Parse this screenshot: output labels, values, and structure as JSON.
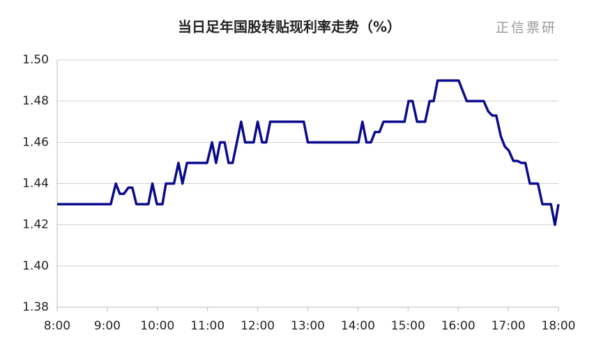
{
  "chart_data": {
    "type": "line",
    "title": "当日足年国股转贴现利率走势（%）",
    "watermark": "正信票研",
    "x": [
      8,
      9.07,
      9.17,
      9.25,
      9.33,
      9.42,
      9.5,
      9.58,
      9.82,
      9.9,
      9.99,
      10.1,
      10.17,
      10.33,
      10.42,
      10.5,
      10.59,
      10.99,
      11.09,
      11.17,
      11.25,
      11.34,
      11.42,
      11.5,
      11.67,
      11.75,
      11.92,
      12.0,
      12.09,
      12.17,
      12.25,
      12.92,
      13.0,
      14.01,
      14.09,
      14.17,
      14.26,
      14.34,
      14.43,
      14.51,
      14.93,
      15.01,
      15.09,
      15.18,
      15.34,
      15.43,
      15.51,
      15.59,
      16.01,
      16.17,
      16.51,
      16.6,
      16.68,
      16.76,
      16.85,
      16.93,
      17.01,
      17.1,
      17.18,
      17.26,
      17.34,
      17.43,
      17.59,
      17.68,
      17.85,
      17.93,
      18.0
    ],
    "series": [
      {
        "name": "利率",
        "color": "#0a0a8c",
        "values": [
          1.43,
          1.43,
          1.44,
          1.435,
          1.435,
          1.438,
          1.438,
          1.43,
          1.43,
          1.44,
          1.43,
          1.43,
          1.44,
          1.44,
          1.45,
          1.44,
          1.45,
          1.45,
          1.46,
          1.45,
          1.46,
          1.46,
          1.45,
          1.45,
          1.47,
          1.46,
          1.46,
          1.47,
          1.46,
          1.46,
          1.47,
          1.47,
          1.46,
          1.46,
          1.47,
          1.46,
          1.46,
          1.465,
          1.465,
          1.47,
          1.47,
          1.48,
          1.48,
          1.47,
          1.47,
          1.48,
          1.48,
          1.49,
          1.49,
          1.48,
          1.48,
          1.475,
          1.473,
          1.473,
          1.463,
          1.458,
          1.456,
          1.451,
          1.451,
          1.45,
          1.45,
          1.44,
          1.44,
          1.43,
          1.43,
          1.42,
          1.43
        ]
      }
    ],
    "xlim": [
      8,
      18
    ],
    "xticks": [
      {
        "value": 8,
        "label": "8:00"
      },
      {
        "value": 9,
        "label": "9:00"
      },
      {
        "value": 10,
        "label": "10:00"
      },
      {
        "value": 11,
        "label": "11:00"
      },
      {
        "value": 12,
        "label": "12:00"
      },
      {
        "value": 13,
        "label": "13:00"
      },
      {
        "value": 14,
        "label": "14:00"
      },
      {
        "value": 15,
        "label": "15:00"
      },
      {
        "value": 16,
        "label": "16:00"
      },
      {
        "value": 17,
        "label": "17:00"
      },
      {
        "value": 18,
        "label": "18:00"
      }
    ],
    "ylim": [
      1.38,
      1.5
    ],
    "yticks": [
      {
        "value": 1.38,
        "label": "1.38"
      },
      {
        "value": 1.4,
        "label": "1.40"
      },
      {
        "value": 1.42,
        "label": "1.42"
      },
      {
        "value": 1.44,
        "label": "1.44"
      },
      {
        "value": 1.46,
        "label": "1.46"
      },
      {
        "value": 1.48,
        "label": "1.48"
      },
      {
        "value": 1.5,
        "label": "1.50"
      }
    ],
    "grid": true
  }
}
